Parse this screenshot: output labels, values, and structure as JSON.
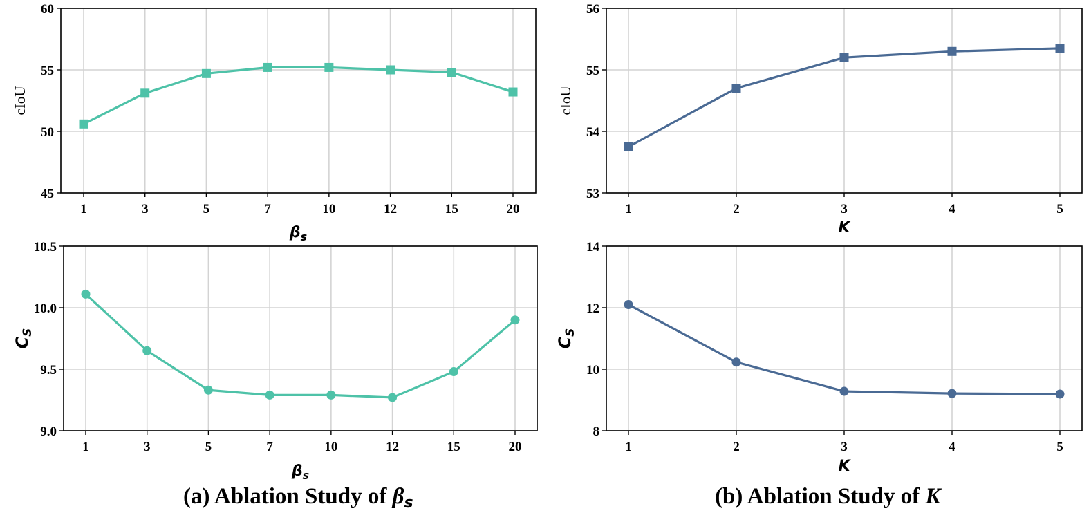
{
  "chart_data": [
    {
      "type": "line",
      "id": "p1",
      "categories": [
        "1",
        "3",
        "5",
        "7",
        "10",
        "12",
        "15",
        "20"
      ],
      "values": [
        50.6,
        53.1,
        54.7,
        55.2,
        55.2,
        55.0,
        54.8,
        53.2
      ],
      "ylim": [
        45,
        60
      ],
      "yticks": [
        "45",
        "50",
        "55",
        "60"
      ],
      "ylabel": "cIoU",
      "xlabel_main": "β",
      "xlabel_sub": "s",
      "marker": "square",
      "color": "#4ec2a8"
    },
    {
      "type": "line",
      "id": "p2",
      "categories": [
        "1",
        "2",
        "3",
        "4",
        "5"
      ],
      "values": [
        53.75,
        54.7,
        55.2,
        55.3,
        55.35
      ],
      "ylim": [
        53,
        56
      ],
      "yticks": [
        "53",
        "54",
        "55",
        "56"
      ],
      "ylabel": "cIoU",
      "xlabel_main": "K",
      "xlabel_sub": "",
      "marker": "square",
      "color": "#4a6a94"
    },
    {
      "type": "line",
      "id": "p3",
      "categories": [
        "1",
        "3",
        "5",
        "7",
        "10",
        "12",
        "15",
        "20"
      ],
      "values": [
        10.11,
        9.65,
        9.33,
        9.29,
        9.29,
        9.27,
        9.48,
        9.9
      ],
      "ylim": [
        9.0,
        10.5
      ],
      "yticks": [
        "9.0",
        "9.5",
        "10.0",
        "10.5"
      ],
      "ylabel": "C",
      "ylabel_sub": "S",
      "xlabel_main": "β",
      "xlabel_sub": "s",
      "marker": "circle",
      "color": "#4ec2a8"
    },
    {
      "type": "line",
      "id": "p4",
      "categories": [
        "1",
        "2",
        "3",
        "4",
        "5"
      ],
      "values": [
        12.1,
        10.23,
        9.28,
        9.21,
        9.19
      ],
      "ylim": [
        8,
        14
      ],
      "yticks": [
        "8",
        "10",
        "12",
        "14"
      ],
      "ylabel": "C",
      "ylabel_sub": "S",
      "xlabel_main": "K",
      "xlabel_sub": "",
      "marker": "circle",
      "color": "#4a6a94"
    }
  ],
  "captions": {
    "left": {
      "prefix": "(a) Ablation Study of ",
      "symbol": "β",
      "sub": "s"
    },
    "right": {
      "prefix": "(b) Ablation Study of ",
      "symbol": "K"
    }
  }
}
